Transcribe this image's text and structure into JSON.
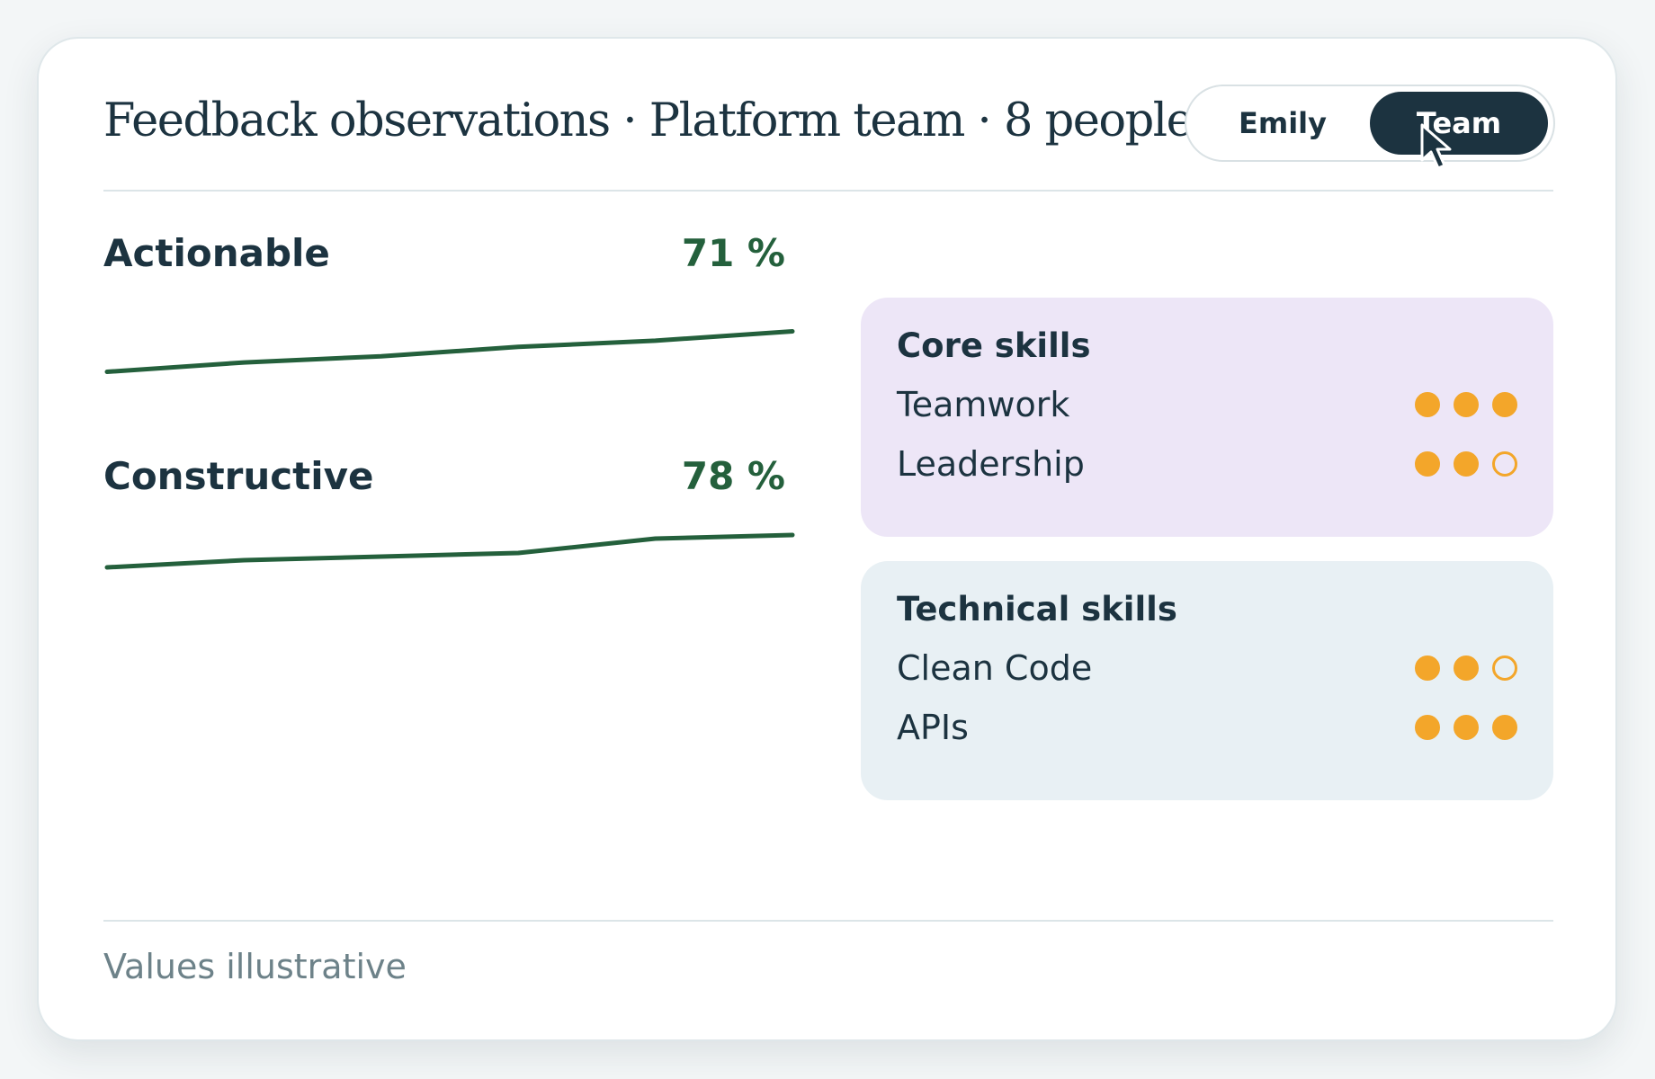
{
  "header": {
    "title": "Feedback observations · Platform team · 8 people",
    "toggle": {
      "options": [
        "Emily",
        "Team"
      ],
      "selected": "Team"
    }
  },
  "metrics": [
    {
      "label": "Actionable",
      "value": "71 %",
      "trend": [
        62,
        65,
        67,
        70,
        72,
        75
      ]
    },
    {
      "label": "Constructive",
      "value": "78 %",
      "trend": [
        74,
        75,
        75.5,
        76,
        78,
        78.5
      ]
    }
  ],
  "skill_groups": [
    {
      "title": "Core skills",
      "skills": [
        {
          "name": "Teamwork",
          "rating": 3,
          "max": 3
        },
        {
          "name": "Leadership",
          "rating": 2,
          "max": 3
        }
      ]
    },
    {
      "title": "Technical skills",
      "skills": [
        {
          "name": "Clean Code",
          "rating": 2,
          "max": 3
        },
        {
          "name": "APIs",
          "rating": 3,
          "max": 3
        }
      ]
    }
  ],
  "footnote": "Values illustrative",
  "colors": {
    "accent_dark": "#1c3340",
    "trend_green": "#24603c",
    "rating_orange": "#f3a62a",
    "core_panel_bg": "#ede6f7",
    "tech_panel_bg": "#e8f0f4"
  },
  "icons": {
    "cursor": "arrow-cursor-icon"
  }
}
